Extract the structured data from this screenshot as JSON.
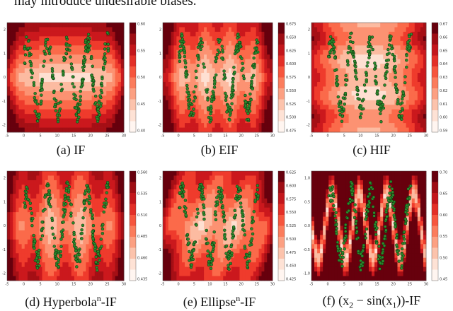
{
  "header": {
    "text": "may introduce undesirable biases."
  },
  "panels": [
    {
      "caption": [
        {
          "text": "(a) IF"
        }
      ],
      "xticks": [
        "-5",
        "0",
        "5",
        "10",
        "15",
        "20",
        "25",
        "30"
      ],
      "yticks": [
        "2",
        "1",
        "0",
        "-1",
        "-2"
      ],
      "colorbar_ticks": [
        "0.60",
        "0.55",
        "0.50",
        "0.45",
        "0.40"
      ]
    },
    {
      "caption": [
        {
          "text": "(b) EIF"
        }
      ],
      "xticks": [
        "-5",
        "0",
        "5",
        "10",
        "15",
        "20",
        "25",
        "30"
      ],
      "yticks": [
        "2",
        "1",
        "0",
        "-1",
        "-2"
      ],
      "colorbar_ticks": [
        "0.675",
        "0.650",
        "0.625",
        "0.600",
        "0.575",
        "0.550",
        "0.525",
        "0.500",
        "0.475"
      ]
    },
    {
      "caption": [
        {
          "text": "(c) HIF"
        }
      ],
      "xticks": [
        "-5",
        "0",
        "5",
        "10",
        "15",
        "20",
        "25",
        "30"
      ],
      "yticks": [
        "2",
        "1",
        "0",
        "-1",
        "-2"
      ],
      "colorbar_ticks": [
        "0.67",
        "0.66",
        "0.65",
        "0.64",
        "0.63",
        "0.62",
        "0.61",
        "0.60",
        "0.59"
      ]
    },
    {
      "caption": [
        {
          "text": "(d) Hyperbola"
        },
        {
          "sup": "n"
        },
        {
          "text": "-IF"
        }
      ],
      "xticks": [
        "-5",
        "0",
        "5",
        "10",
        "15",
        "20",
        "25",
        "30"
      ],
      "yticks": [
        "2",
        "1",
        "0",
        "-1",
        "-2"
      ],
      "colorbar_ticks": [
        "0.560",
        "0.535",
        "0.510",
        "0.485",
        "0.460",
        "0.435"
      ]
    },
    {
      "caption": [
        {
          "text": "(e) Ellipse"
        },
        {
          "sup": "n"
        },
        {
          "text": "-IF"
        }
      ],
      "xticks": [
        "-5",
        "0",
        "5",
        "10",
        "15",
        "20",
        "25",
        "30"
      ],
      "yticks": [
        "2",
        "1",
        "0",
        "-1",
        "-2"
      ],
      "colorbar_ticks": [
        "0.625",
        "0.600",
        "0.575",
        "0.550",
        "0.525",
        "0.500",
        "0.475",
        "0.450",
        "0.425"
      ]
    },
    {
      "caption": [
        {
          "text": "(f) (x"
        },
        {
          "sub": "2"
        },
        {
          "text": " − sin(x"
        },
        {
          "sub": "1"
        },
        {
          "text": "))-IF"
        }
      ],
      "xticks": [
        "-5",
        "0",
        "5",
        "10",
        "15",
        "20",
        "25",
        "30"
      ],
      "yticks": [
        "1.0",
        "0.5",
        "0.0",
        "-0.5",
        "-1.0"
      ],
      "colorbar_ticks": [
        "0.70",
        "0.65",
        "0.60",
        "0.55",
        "0.50",
        "0.45"
      ]
    }
  ]
}
